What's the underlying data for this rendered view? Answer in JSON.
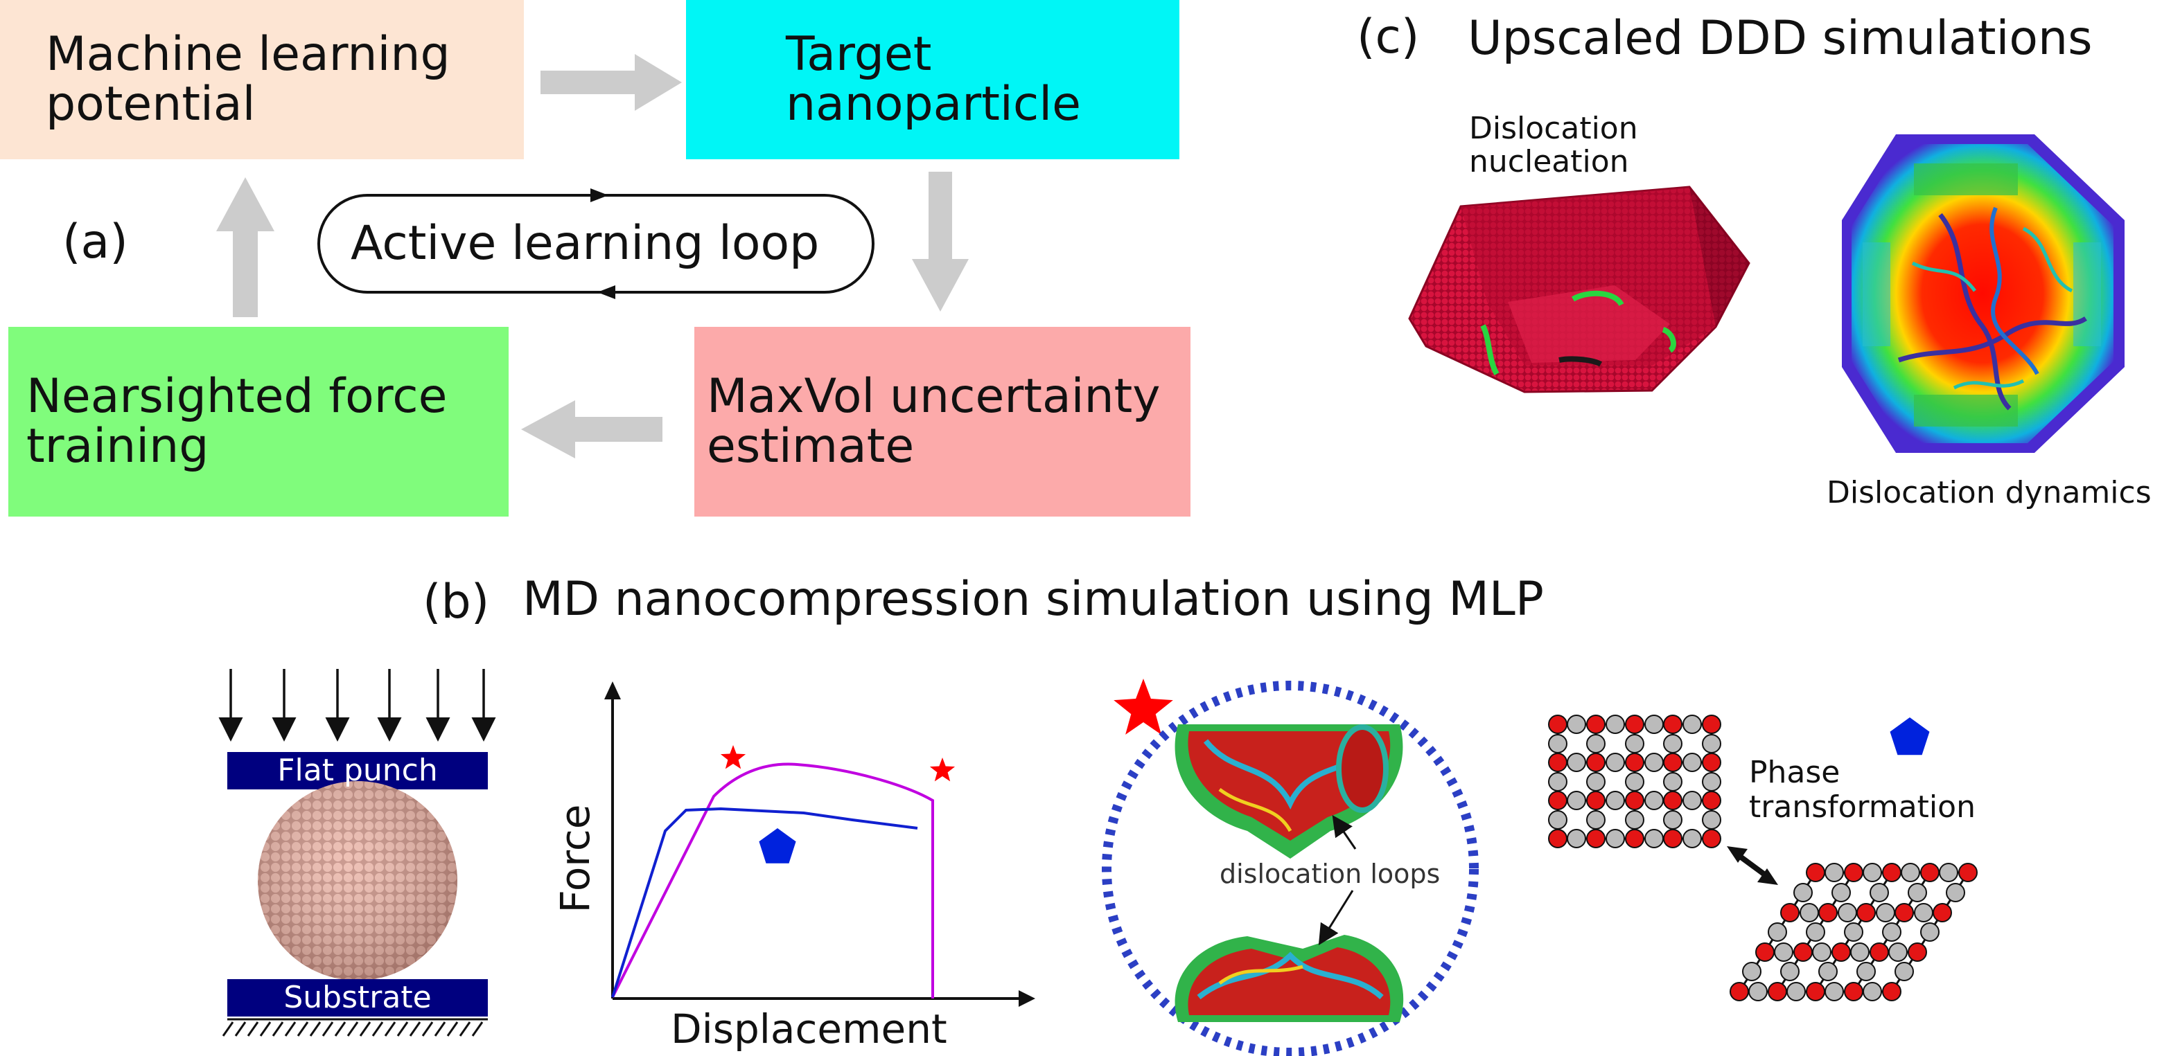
{
  "panel_a": {
    "label": "(a)",
    "boxes": {
      "mlp": {
        "text1": "Machine learning",
        "text2": "potential",
        "color": "#fde5d3"
      },
      "target": {
        "text1": "Target",
        "text2": "nanoparticle",
        "color": "#00f6f6"
      },
      "nearsighted": {
        "text1": "Nearsighted force",
        "text2": "training",
        "color": "#80fc7c"
      },
      "maxvol": {
        "text1": "MaxVol uncertainty",
        "text2": "estimate",
        "color": "#fcaaaa"
      }
    },
    "loop_label": "Active learning loop",
    "arrow_color": "#cccccc"
  },
  "panel_b": {
    "label": "(b)",
    "title": "MD nanocompression simulation using MLP",
    "punch_label": "Flat punch",
    "substrate_label": "Substrate",
    "plate_color": "#00007f",
    "particle_color": "#e6a99a",
    "x_axis_label": "Displacement",
    "y_axis_label": "Force",
    "dislocation_label": "dislocation loops",
    "phase_label1": "Phase",
    "phase_label2": "transformation",
    "star_color": "#ff0000",
    "pentagon_color": "#0022dd",
    "purple_color": "#c000e0",
    "blue_color": "#1020d0"
  },
  "panel_c": {
    "label": "(c)",
    "title": "Upscaled DDD simulations",
    "nucleation_label1": "Dislocation",
    "nucleation_label2": "nucleation",
    "dynamics_label": "Dislocation dynamics"
  }
}
